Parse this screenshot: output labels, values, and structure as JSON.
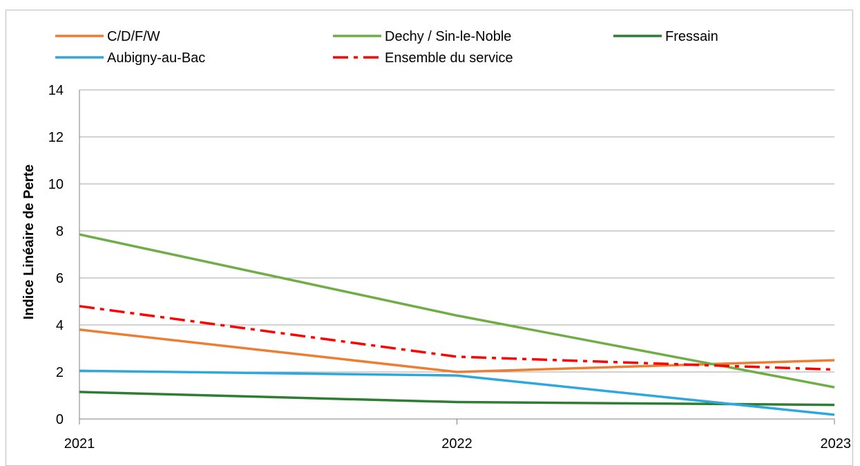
{
  "chart_data": {
    "type": "line",
    "title": "",
    "xlabel": "",
    "ylabel": "Indice Linéaire de Perte",
    "x": [
      "2021",
      "2022",
      "2023"
    ],
    "ylim": [
      0,
      14
    ],
    "yticks": [
      "0",
      "2",
      "4",
      "6",
      "8",
      "10",
      "12",
      "14"
    ],
    "grid": true,
    "legend_position": "top",
    "series": [
      {
        "name": "C/D/F/W",
        "values": [
          3.8,
          2.0,
          2.5
        ],
        "color": "#ED7D31",
        "dash": "solid"
      },
      {
        "name": "Dechy / Sin-le-Noble",
        "values": [
          7.85,
          4.4,
          1.35
        ],
        "color": "#70AD47",
        "dash": "solid"
      },
      {
        "name": "Fressain",
        "values": [
          1.15,
          0.72,
          0.6
        ],
        "color": "#2E7D32",
        "dash": "solid"
      },
      {
        "name": "Aubigny-au-Bac",
        "values": [
          2.05,
          1.85,
          0.18
        ],
        "color": "#2EA8DC",
        "dash": "solid"
      },
      {
        "name": "Ensemble du service",
        "values": [
          4.8,
          2.65,
          2.1
        ],
        "color": "#FF0000",
        "dash": "dashdot"
      }
    ]
  }
}
